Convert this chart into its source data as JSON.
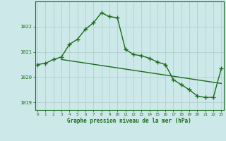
{
  "line1_x": [
    0,
    1,
    2,
    3,
    4,
    5,
    6,
    7,
    8,
    9,
    10,
    11,
    12,
    13,
    14,
    15,
    16,
    17,
    18,
    19,
    20,
    21,
    22,
    23
  ],
  "line1_y": [
    1020.5,
    1020.55,
    1020.7,
    1020.8,
    1021.3,
    1021.5,
    1021.9,
    1022.15,
    1022.55,
    1022.4,
    1022.35,
    1021.1,
    1020.9,
    1020.85,
    1020.75,
    1020.6,
    1020.5,
    1019.9,
    1019.7,
    1019.5,
    1019.25,
    1019.2,
    1019.2,
    1020.35
  ],
  "line2_x": [
    3,
    23
  ],
  "line2_y": [
    1020.7,
    1019.75
  ],
  "line_color": "#1a6b1a",
  "bg_color": "#cce8e8",
  "grid_color": "#aacccc",
  "marker": "+",
  "markersize": 4,
  "linewidth": 1.0,
  "xlabel": "Graphe pression niveau de la mer (hPa)",
  "yticks": [
    1019,
    1020,
    1021,
    1022
  ],
  "xticks": [
    0,
    1,
    2,
    3,
    4,
    5,
    6,
    7,
    8,
    9,
    10,
    11,
    12,
    13,
    14,
    15,
    16,
    17,
    18,
    19,
    20,
    21,
    22,
    23
  ],
  "ylim": [
    1018.7,
    1023.0
  ],
  "xlim": [
    -0.3,
    23.3
  ]
}
